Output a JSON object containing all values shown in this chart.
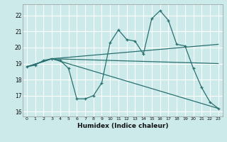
{
  "xlabel": "Humidex (Indice chaleur)",
  "ylabel": "",
  "xlim": [
    -0.5,
    23.5
  ],
  "ylim": [
    15.7,
    22.7
  ],
  "yticks": [
    16,
    17,
    18,
    19,
    20,
    21,
    22
  ],
  "xticks": [
    0,
    1,
    2,
    3,
    4,
    5,
    6,
    7,
    8,
    9,
    10,
    11,
    12,
    13,
    14,
    15,
    16,
    17,
    18,
    19,
    20,
    21,
    22,
    23
  ],
  "bg_color": "#cceaea",
  "grid_color": "#b0d8d8",
  "line_color": "#2a7070",
  "main_line": {
    "x": [
      0,
      1,
      2,
      3,
      4,
      5,
      6,
      7,
      8,
      9,
      10,
      11,
      12,
      13,
      14,
      15,
      16,
      17,
      18,
      19,
      20,
      21,
      22,
      23
    ],
    "y": [
      18.8,
      18.9,
      19.2,
      19.3,
      19.2,
      18.7,
      16.8,
      16.8,
      17.0,
      17.8,
      20.3,
      21.1,
      20.5,
      20.4,
      19.6,
      21.8,
      22.3,
      21.7,
      20.2,
      20.1,
      18.7,
      17.5,
      16.6,
      16.2
    ]
  },
  "trend_lines": [
    {
      "x": [
        0,
        3,
        23
      ],
      "y": [
        18.8,
        19.3,
        16.2
      ]
    },
    {
      "x": [
        0,
        3,
        23
      ],
      "y": [
        18.8,
        19.3,
        19.0
      ]
    },
    {
      "x": [
        0,
        3,
        23
      ],
      "y": [
        18.8,
        19.3,
        20.2
      ]
    }
  ]
}
